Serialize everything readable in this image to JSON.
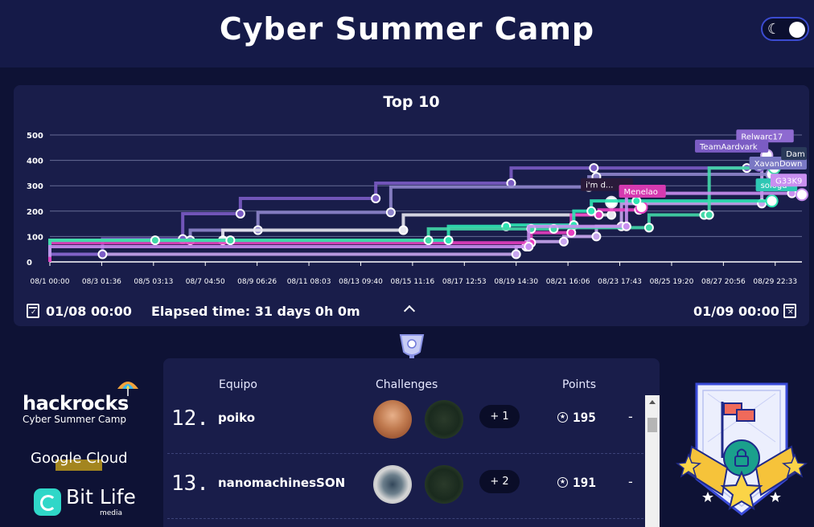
{
  "header": {
    "title": "Cyber Summer Camp",
    "theme_toggle_icon": "moon-stars-icon"
  },
  "chart": {
    "title": "Top 10",
    "y_ticks": [
      "500",
      "400",
      "300",
      "200",
      "100",
      "0"
    ],
    "x_ticks": [
      "08/1 00:00",
      "08/3 01:36",
      "08/5 03:13",
      "08/7 04:50",
      "08/9 06:26",
      "08/11 08:03",
      "08/13 09:40",
      "08/15 11:16",
      "08/17 12:53",
      "08/19 14:30",
      "08/21 16:06",
      "08/23 17:43",
      "08/25 19:20",
      "08/27 20:56",
      "08/29 22:33"
    ],
    "labels": [
      "Relwarc17",
      "TeamAardvark",
      "XavanDown",
      "i'm d...",
      "Menelao",
      "sologd",
      "Dam",
      "G33K9"
    ]
  },
  "chart_data": {
    "type": "line",
    "title": "Top 10",
    "xlabel": "",
    "ylabel": "",
    "ylim": [
      0,
      500
    ],
    "x_ticks": [
      "08/1 00:00",
      "08/3 01:36",
      "08/5 03:13",
      "08/7 04:50",
      "08/9 06:26",
      "08/11 08:03",
      "08/13 09:40",
      "08/15 11:16",
      "08/17 12:53",
      "08/19 14:30",
      "08/21 16:06",
      "08/23 17:43",
      "08/25 19:20",
      "08/27 20:56",
      "08/29 22:33"
    ],
    "series": [
      {
        "name": "Relwarc17",
        "color": "#c9a6ee",
        "values": [
          [
            1,
            0
          ],
          [
            19.6,
            30
          ],
          [
            20,
            60
          ],
          [
            21.5,
            80
          ],
          [
            22.8,
            100
          ],
          [
            23.8,
            140
          ],
          [
            29.4,
            230
          ],
          [
            29.6,
            420
          ]
        ]
      },
      {
        "name": "TeamAardvark",
        "color": "#7b5cc4",
        "values": [
          [
            1,
            0
          ],
          [
            3.1,
            30
          ],
          [
            6.3,
            90
          ],
          [
            8.6,
            190
          ],
          [
            14,
            250
          ],
          [
            19.4,
            310
          ],
          [
            22.7,
            370
          ],
          [
            28.8,
            370
          ],
          [
            29.3,
            380
          ]
        ]
      },
      {
        "name": "XavanDown",
        "color": "#8f86cc",
        "values": [
          [
            1,
            30
          ],
          [
            6.6,
            85
          ],
          [
            9.3,
            125
          ],
          [
            14.6,
            195
          ],
          [
            22.5,
            295
          ],
          [
            22.8,
            335
          ],
          [
            29.8,
            345
          ]
        ]
      },
      {
        "name": "i'm d...",
        "color": "#e8e8f0",
        "values": [
          [
            1,
            30
          ],
          [
            7.9,
            85
          ],
          [
            15.1,
            125
          ],
          [
            23.4,
            185
          ],
          [
            23.4,
            235
          ]
        ]
      },
      {
        "name": "Menelao",
        "color": "#e83fc0",
        "values": [
          [
            1,
            0
          ],
          [
            20.2,
            75
          ],
          [
            21.8,
            115
          ],
          [
            22.9,
            185
          ],
          [
            24.5,
            205
          ],
          [
            24.6,
            215
          ]
        ]
      },
      {
        "name": "sologd",
        "color": "#2ee6b4",
        "values": [
          [
            1,
            20
          ],
          [
            16.9,
            85
          ],
          [
            19.2,
            140
          ],
          [
            21.9,
            145
          ],
          [
            22.6,
            200
          ],
          [
            24.4,
            240
          ],
          [
            29.8,
            240
          ]
        ]
      },
      {
        "name": "Dam",
        "color": "#42d9a8",
        "values": [
          [
            1,
            30
          ],
          [
            5.2,
            85
          ],
          [
            8.2,
            85
          ],
          [
            16.1,
            85
          ],
          [
            20.2,
            130
          ],
          [
            21.1,
            130
          ],
          [
            24.9,
            135
          ],
          [
            27.1,
            185
          ],
          [
            27.3,
            185
          ],
          [
            29.9,
            370
          ]
        ]
      },
      {
        "name": "G33K9",
        "color": "#c98ff0",
        "values": [
          [
            1,
            20
          ],
          [
            20.1,
            60
          ],
          [
            24,
            140
          ],
          [
            30.6,
            270
          ],
          [
            31,
            265
          ]
        ]
      }
    ]
  },
  "time_bar": {
    "start": "01/08 00:00",
    "elapsed": "Elapsed time: 31 days 0h 0m",
    "end": "01/09 00:00"
  },
  "table": {
    "headers": {
      "team": "Equipo",
      "challenges": "Challenges",
      "points": "Points"
    },
    "rows": [
      {
        "rank": "12.",
        "team": "poiko",
        "more": "+ 1",
        "points": "195",
        "change": "-"
      },
      {
        "rank": "13.",
        "team": "nanomachinesSON",
        "more": "+ 2",
        "points": "191",
        "change": "-"
      }
    ]
  },
  "sponsors": {
    "hackrocks": "hackrocks",
    "hackrocks_sub": "Cyber Summer Camp",
    "google": "Google Cloud",
    "bitlife": "Bit Life",
    "bitlife_sub": "media"
  }
}
